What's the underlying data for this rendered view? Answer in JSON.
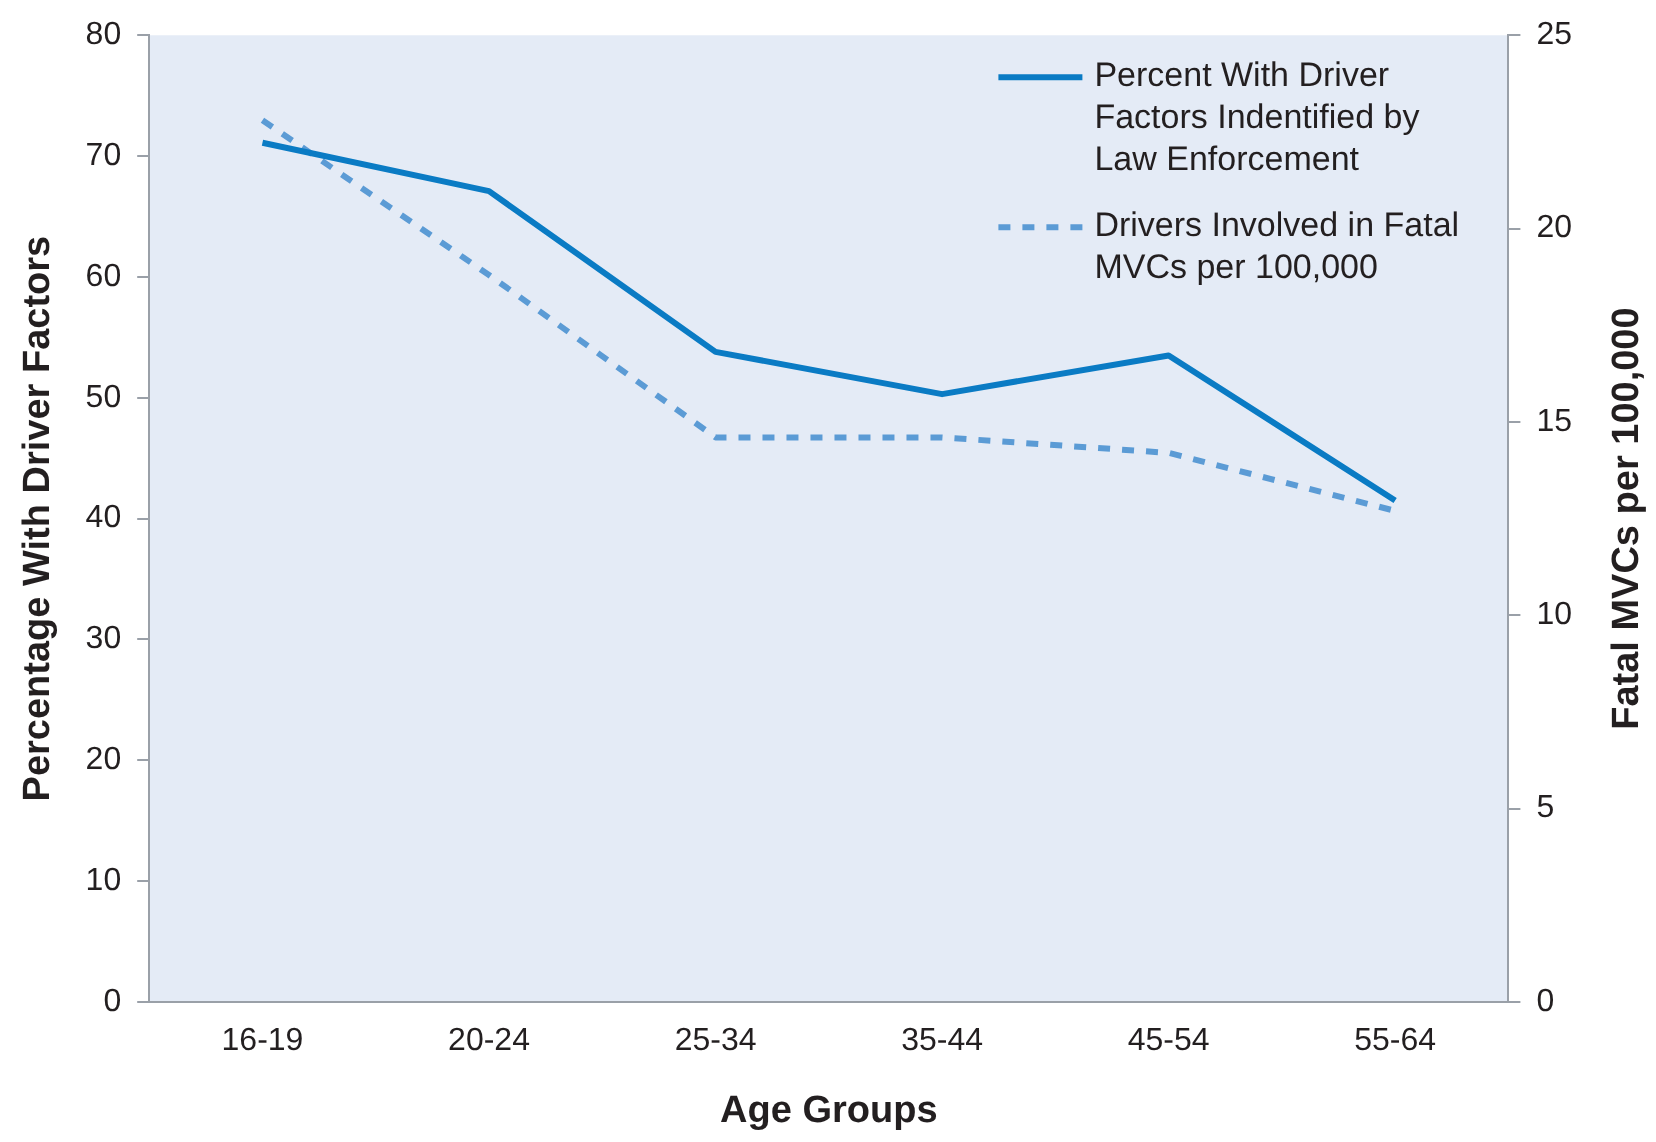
{
  "chart_data": {
    "type": "line",
    "xlabel": "Age Groups",
    "ylabel": "Percentage With Driver Factors",
    "y2label": "Fatal MVCs per 100,000",
    "categories": [
      "16-19",
      "20-24",
      "25-34",
      "35-44",
      "45-54",
      "55-64"
    ],
    "series": [
      {
        "name": "Percent With Driver Factors Indentified by Law Enforcement",
        "color": "#0a7bc4",
        "values": [
          71.1,
          67.1,
          53.8,
          50.3,
          53.5,
          41.5
        ],
        "line_style": "solid"
      },
      {
        "name": "Drivers Involved in Fatal MVCs per 100,000",
        "color": "#5b9bd5",
        "values": [
          22.8,
          18.8,
          14.6,
          14.6,
          14.2,
          12.7
        ],
        "axis": "y2",
        "line_style": "dashed"
      }
    ],
    "ylim": [
      0,
      80
    ],
    "yticks": [
      0,
      10,
      20,
      30,
      40,
      50,
      60,
      70,
      80
    ],
    "y2lim": [
      0,
      25
    ],
    "y2ticks": [
      0,
      5,
      10,
      15,
      20,
      25
    ],
    "grid": false,
    "legend": "top right",
    "marker": "none"
  }
}
